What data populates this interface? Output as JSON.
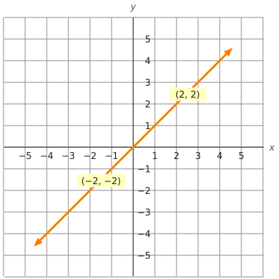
{
  "chart_data": {
    "type": "line",
    "xlabel": "x",
    "ylabel": "y",
    "xlim": [
      -6,
      6
    ],
    "ylim": [
      -6,
      6
    ],
    "grid": true,
    "x_ticks": [
      -5,
      -4,
      -3,
      -2,
      -1,
      1,
      2,
      3,
      4,
      5
    ],
    "y_ticks": [
      -5,
      -4,
      -3,
      -2,
      -1,
      1,
      2,
      3,
      4,
      5
    ],
    "series": [
      {
        "x": [
          -4.6,
          4.6
        ],
        "y": [
          -4.6,
          4.6
        ],
        "color": "#f77f00",
        "arrows": "both"
      }
    ],
    "annotations": [
      {
        "text": "(2, 2)",
        "x": 2,
        "y": 2,
        "bg": "#ffffbf"
      },
      {
        "text": "(−2, −2)",
        "x": -2,
        "y": -2,
        "bg": "#ffffbf"
      }
    ]
  }
}
